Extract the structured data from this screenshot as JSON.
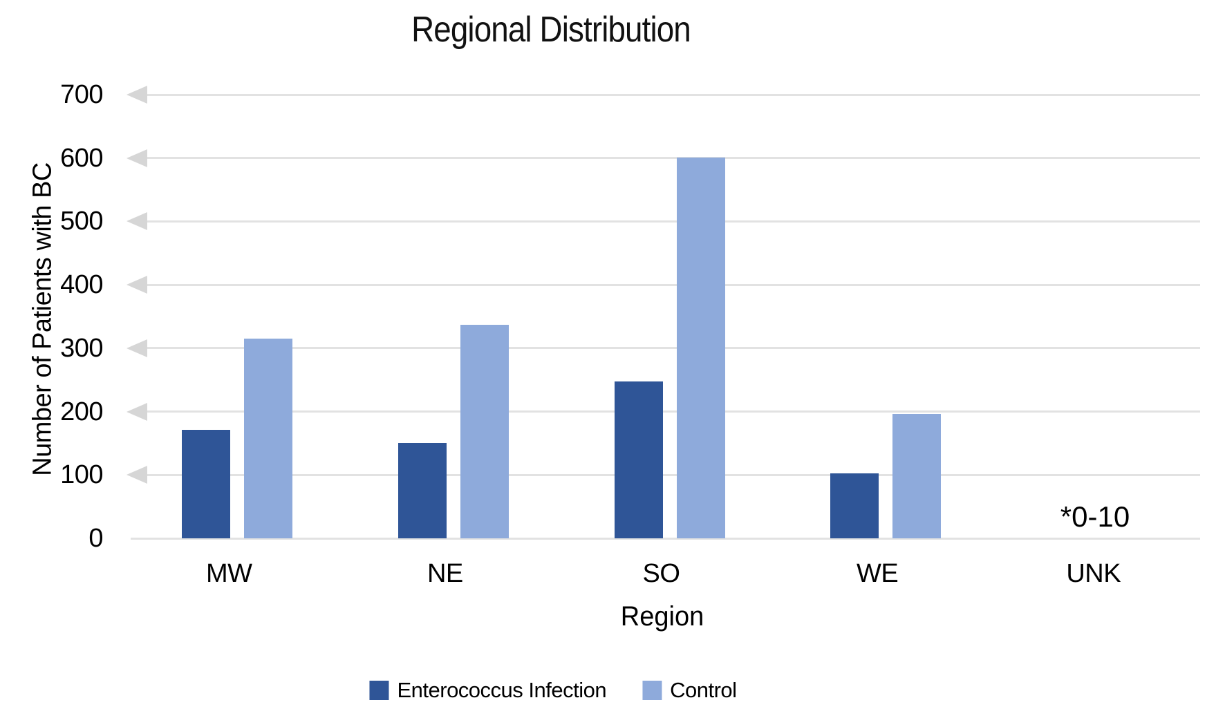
{
  "chart_data": {
    "type": "bar",
    "title": "Regional Distribution",
    "xlabel": "Region",
    "ylabel": "Number of Patients with BC",
    "categories": [
      "MW",
      "NE",
      "SO",
      "WE",
      "UNK"
    ],
    "series": [
      {
        "name": "Enterococcus Infection",
        "color": "#2F5597",
        "values": [
          171,
          150,
          248,
          103,
          0
        ]
      },
      {
        "name": "Control",
        "color": "#8EAADB",
        "values": [
          315,
          337,
          601,
          196,
          0
        ]
      }
    ],
    "annotation": {
      "text": "*0-10",
      "category": "UNK"
    },
    "y_axis": {
      "min": 0,
      "max": 700,
      "tick_step": 100,
      "ticks": [
        0,
        100,
        200,
        300,
        400,
        500,
        600,
        700
      ]
    },
    "grid": true,
    "legend_position": "bottom",
    "colors": {
      "gridline": "#E2E2E2",
      "axis_arrow": "#D6D6D6",
      "text": "#000000",
      "background": "#FFFFFF"
    }
  }
}
